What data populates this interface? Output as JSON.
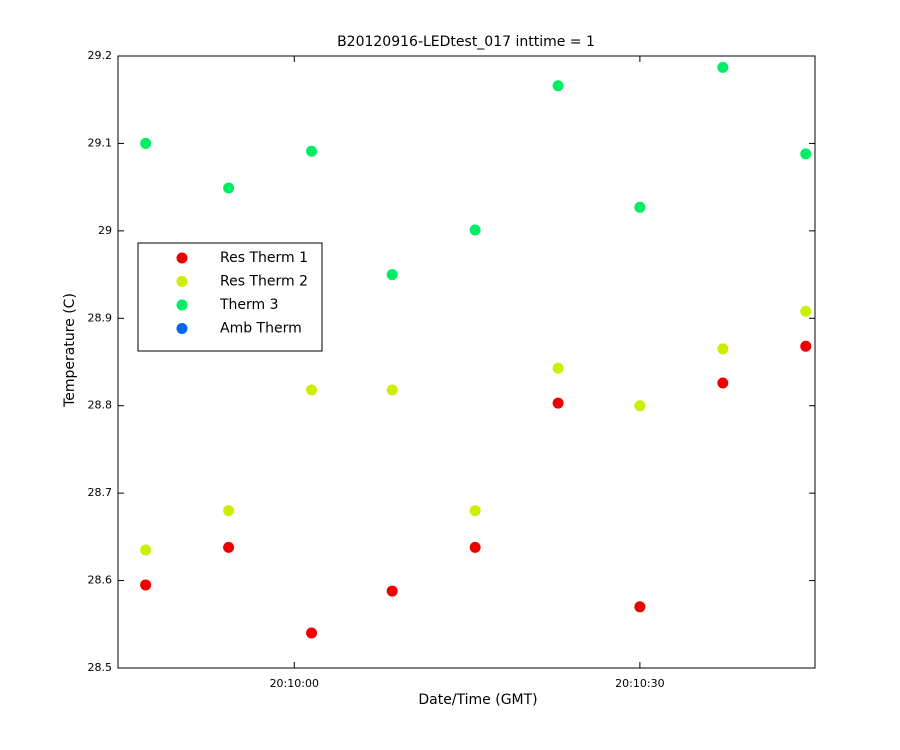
{
  "chart_data": {
    "type": "scatter",
    "title": "B20120916-LEDtest_017 inttime = 1",
    "xlabel": "Date/Time (GMT)",
    "ylabel": "Temperature (C)",
    "x": [
      72587.1,
      72594.3,
      72601.5,
      72608.5,
      72615.7,
      72622.9,
      72630.0,
      72637.2,
      72644.4
    ],
    "series": [
      {
        "name": "Res Therm 1",
        "color": "#ee0000",
        "values": [
          28.595,
          28.638,
          28.54,
          28.588,
          28.638,
          28.803,
          28.57,
          28.826,
          28.868
        ]
      },
      {
        "name": "Res Therm 2",
        "color": "#ccee00",
        "values": [
          28.635,
          28.68,
          28.818,
          28.818,
          28.68,
          28.843,
          28.8,
          28.865,
          28.908
        ]
      },
      {
        "name": "Therm 3",
        "color": "#00ee66",
        "values": [
          29.1,
          29.049,
          29.091,
          28.95,
          29.001,
          29.166,
          29.027,
          29.187,
          29.088
        ]
      },
      {
        "name": "Amb Therm",
        "color": "#0066ee",
        "values": [
          null,
          null,
          null,
          null,
          null,
          null,
          null,
          null,
          null
        ]
      }
    ],
    "xlim": [
      72584.7,
      72645.2
    ],
    "xticks": [
      {
        "value": 72600,
        "label": "20:10:00"
      },
      {
        "value": 72630,
        "label": "20:10:30"
      }
    ],
    "ylim": [
      28.5,
      29.2
    ],
    "yticks": [
      28.5,
      28.6,
      28.7,
      28.8,
      28.9,
      29,
      29.1,
      29.2
    ],
    "grid": false,
    "legend": "left"
  }
}
